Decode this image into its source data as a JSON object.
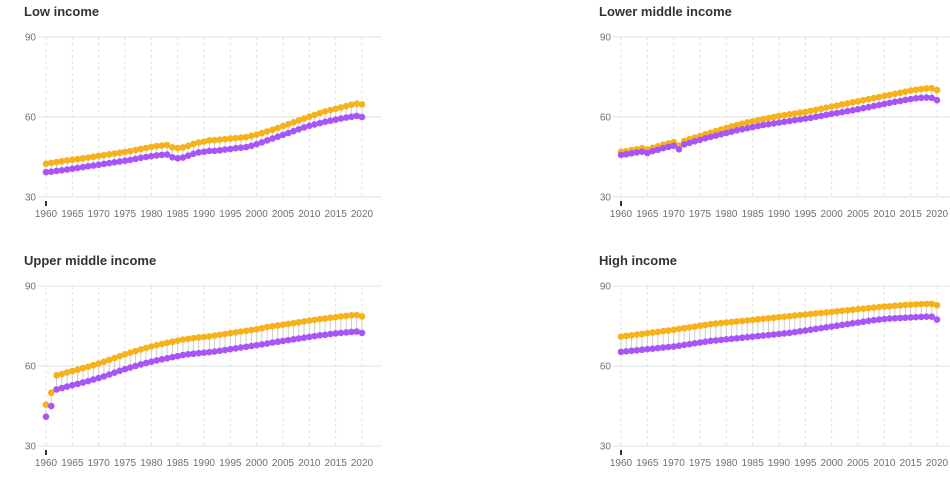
{
  "colors": {
    "female": "#f7b21b",
    "male": "#a855f7",
    "grid": "#e2e2e2",
    "stem": "#cfcfcf",
    "axis": "#333333"
  },
  "chart_data": [
    {
      "type": "scatter",
      "title": "Low income",
      "ylim": [
        30,
        90
      ],
      "yticks": [
        30,
        60,
        90
      ],
      "xticks": [
        1960,
        1965,
        1970,
        1975,
        1980,
        1985,
        1990,
        1995,
        2000,
        2005,
        2010,
        2015,
        2020
      ],
      "x_start": 1960,
      "x_end": 2020,
      "grid": true,
      "series": [
        {
          "key": "female",
          "values": [
            42.5,
            42.8,
            43.1,
            43.4,
            43.7,
            44.0,
            44.2,
            44.5,
            44.8,
            45.1,
            45.4,
            45.7,
            46.0,
            46.3,
            46.6,
            46.9,
            47.2,
            47.6,
            48.0,
            48.4,
            48.8,
            49.1,
            49.3,
            49.5,
            48.6,
            48.4,
            48.6,
            49.2,
            49.9,
            50.4,
            50.8,
            51.2,
            51.3,
            51.5,
            51.7,
            51.9,
            52.1,
            52.3,
            52.5,
            52.9,
            53.4,
            54.0,
            54.6,
            55.2,
            55.9,
            56.6,
            57.3,
            58.0,
            58.7,
            59.4,
            60.1,
            60.8,
            61.5,
            62.1,
            62.6,
            63.1,
            63.6,
            64.1,
            64.6,
            65.0,
            64.7
          ]
        },
        {
          "key": "male",
          "values": [
            39.3,
            39.5,
            39.8,
            40.0,
            40.3,
            40.6,
            40.9,
            41.2,
            41.5,
            41.8,
            42.1,
            42.4,
            42.7,
            43.0,
            43.3,
            43.6,
            43.9,
            44.3,
            44.7,
            45.0,
            45.3,
            45.6,
            45.8,
            45.9,
            44.9,
            44.5,
            44.8,
            45.5,
            46.2,
            46.7,
            47.0,
            47.3,
            47.3,
            47.5,
            47.8,
            48.0,
            48.3,
            48.5,
            48.7,
            49.2,
            49.8,
            50.5,
            51.2,
            51.9,
            52.6,
            53.3,
            54.0,
            54.7,
            55.4,
            56.1,
            56.7,
            57.2,
            57.7,
            58.2,
            58.6,
            59.0,
            59.4,
            59.8,
            60.1,
            60.4,
            60.0
          ]
        }
      ]
    },
    {
      "type": "scatter",
      "title": "Lower middle income",
      "ylim": [
        30,
        90
      ],
      "yticks": [
        30,
        60,
        90
      ],
      "xticks": [
        1960,
        1965,
        1970,
        1975,
        1980,
        1985,
        1990,
        1995,
        2000,
        2005,
        2010,
        2015,
        2020
      ],
      "x_start": 1960,
      "x_end": 2020,
      "grid": true,
      "series": [
        {
          "key": "female",
          "values": [
            47.0,
            47.2,
            47.6,
            47.9,
            48.3,
            47.8,
            48.5,
            49.0,
            49.6,
            50.1,
            50.6,
            49.3,
            51.0,
            51.7,
            52.3,
            52.9,
            53.5,
            54.1,
            54.7,
            55.3,
            55.9,
            56.5,
            57.0,
            57.5,
            58.0,
            58.4,
            58.8,
            59.2,
            59.6,
            60.0,
            60.4,
            60.7,
            61.0,
            61.3,
            61.6,
            61.9,
            62.3,
            62.7,
            63.1,
            63.5,
            63.9,
            64.3,
            64.7,
            65.1,
            65.5,
            65.9,
            66.3,
            66.7,
            67.1,
            67.5,
            67.9,
            68.3,
            68.7,
            69.1,
            69.5,
            69.9,
            70.2,
            70.5,
            70.7,
            70.8,
            70.1
          ]
        },
        {
          "key": "male",
          "values": [
            45.8,
            46.0,
            46.4,
            46.7,
            47.0,
            46.5,
            47.2,
            47.7,
            48.3,
            48.8,
            49.2,
            47.9,
            49.7,
            50.3,
            50.9,
            51.4,
            52.0,
            52.5,
            53.0,
            53.5,
            54.0,
            54.5,
            55.0,
            55.4,
            55.8,
            56.2,
            56.6,
            57.0,
            57.3,
            57.6,
            57.9,
            58.2,
            58.5,
            58.8,
            59.1,
            59.4,
            59.7,
            60.1,
            60.4,
            60.8,
            61.2,
            61.5,
            61.8,
            62.2,
            62.5,
            62.9,
            63.3,
            63.7,
            64.1,
            64.5,
            64.9,
            65.3,
            65.7,
            66.0,
            66.4,
            66.7,
            67.0,
            67.2,
            67.3,
            67.2,
            66.3
          ]
        }
      ]
    },
    {
      "type": "scatter",
      "title": "Upper middle income",
      "ylim": [
        30,
        90
      ],
      "yticks": [
        30,
        60,
        90
      ],
      "xticks": [
        1960,
        1965,
        1970,
        1975,
        1980,
        1985,
        1990,
        1995,
        2000,
        2005,
        2010,
        2015,
        2020
      ],
      "x_start": 1960,
      "x_end": 2020,
      "grid": true,
      "series": [
        {
          "key": "female",
          "values": [
            45.5,
            50.0,
            56.5,
            57.0,
            57.6,
            58.1,
            58.6,
            59.2,
            59.7,
            60.3,
            60.9,
            61.6,
            62.3,
            63.0,
            63.7,
            64.4,
            65.0,
            65.6,
            66.2,
            66.8,
            67.3,
            67.8,
            68.3,
            68.7,
            69.1,
            69.5,
            69.9,
            70.2,
            70.5,
            70.7,
            70.9,
            71.1,
            71.4,
            71.7,
            72.0,
            72.3,
            72.6,
            72.9,
            73.2,
            73.5,
            73.8,
            74.2,
            74.6,
            74.9,
            75.2,
            75.5,
            75.8,
            76.1,
            76.4,
            76.7,
            77.0,
            77.3,
            77.6,
            77.8,
            78.1,
            78.3,
            78.6,
            78.8,
            79.0,
            79.1,
            78.6
          ]
        },
        {
          "key": "male",
          "values": [
            41.0,
            45.0,
            51.2,
            51.7,
            52.3,
            52.8,
            53.3,
            53.8,
            54.3,
            54.9,
            55.5,
            56.1,
            56.8,
            57.5,
            58.2,
            58.8,
            59.4,
            60.0,
            60.6,
            61.1,
            61.6,
            62.1,
            62.5,
            62.9,
            63.3,
            63.7,
            64.1,
            64.4,
            64.6,
            64.8,
            65.0,
            65.2,
            65.4,
            65.7,
            66.0,
            66.3,
            66.6,
            66.9,
            67.2,
            67.5,
            67.8,
            68.1,
            68.4,
            68.8,
            69.1,
            69.4,
            69.7,
            70.0,
            70.3,
            70.6,
            70.9,
            71.2,
            71.5,
            71.7,
            72.0,
            72.2,
            72.4,
            72.6,
            72.8,
            72.9,
            72.4
          ]
        }
      ]
    },
    {
      "type": "scatter",
      "title": "High income",
      "ylim": [
        30,
        90
      ],
      "yticks": [
        30,
        60,
        90
      ],
      "xticks": [
        1960,
        1965,
        1970,
        1975,
        1980,
        1985,
        1990,
        1995,
        2000,
        2005,
        2010,
        2015,
        2020
      ],
      "x_start": 1960,
      "x_end": 2020,
      "grid": true,
      "series": [
        {
          "key": "female",
          "values": [
            71.0,
            71.3,
            71.5,
            71.8,
            72.0,
            72.3,
            72.6,
            72.8,
            73.1,
            73.3,
            73.6,
            73.9,
            74.2,
            74.5,
            74.8,
            75.1,
            75.4,
            75.7,
            75.9,
            76.1,
            76.3,
            76.5,
            76.7,
            76.9,
            77.1,
            77.3,
            77.5,
            77.7,
            77.9,
            78.1,
            78.3,
            78.5,
            78.7,
            78.9,
            79.1,
            79.3,
            79.5,
            79.7,
            79.9,
            80.1,
            80.3,
            80.5,
            80.7,
            80.9,
            81.1,
            81.3,
            81.5,
            81.7,
            81.9,
            82.1,
            82.3,
            82.4,
            82.6,
            82.7,
            82.9,
            83.0,
            83.1,
            83.2,
            83.3,
            83.3,
            82.8
          ]
        },
        {
          "key": "male",
          "values": [
            65.3,
            65.5,
            65.7,
            65.9,
            66.1,
            66.3,
            66.5,
            66.7,
            66.9,
            67.1,
            67.3,
            67.6,
            67.9,
            68.2,
            68.5,
            68.8,
            69.1,
            69.4,
            69.6,
            69.8,
            70.0,
            70.2,
            70.4,
            70.6,
            70.8,
            71.0,
            71.2,
            71.4,
            71.6,
            71.8,
            72.0,
            72.2,
            72.4,
            72.7,
            73.0,
            73.3,
            73.6,
            73.9,
            74.2,
            74.5,
            74.8,
            75.1,
            75.4,
            75.7,
            76.0,
            76.3,
            76.6,
            76.9,
            77.2,
            77.4,
            77.6,
            77.8,
            77.9,
            78.0,
            78.1,
            78.2,
            78.3,
            78.4,
            78.5,
            78.5,
            77.4
          ]
        }
      ]
    }
  ]
}
